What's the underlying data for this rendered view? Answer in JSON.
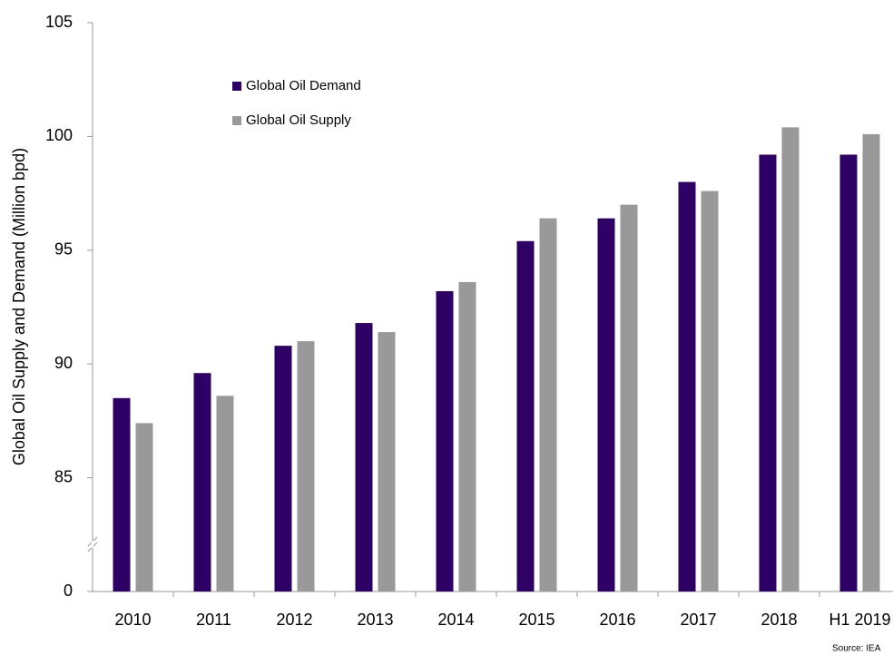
{
  "chart_data": {
    "type": "bar",
    "y_axis_label": "Global Oil Supply and Demand (Million bpd)",
    "source": "Source: IEA",
    "categories": [
      "2010",
      "2011",
      "2012",
      "2013",
      "2014",
      "2015",
      "2016",
      "2017",
      "2018",
      "H1 2019"
    ],
    "series": [
      {
        "name": "Global Oil Demand",
        "color": "#2e0066",
        "values": [
          88.5,
          89.6,
          90.8,
          91.8,
          93.2,
          95.4,
          96.4,
          98.0,
          99.2,
          99.2
        ]
      },
      {
        "name": "Global Oil Supply",
        "color": "#999999",
        "values": [
          87.4,
          88.6,
          91.0,
          91.4,
          93.6,
          96.4,
          97.0,
          97.6,
          100.4,
          100.1
        ]
      }
    ],
    "ylim": [
      80,
      105
    ],
    "yticks": [
      {
        "value": 80,
        "label": "0"
      },
      85,
      90,
      95,
      100,
      105
    ],
    "axis_break": true,
    "grid": false,
    "legend": "top-left"
  }
}
